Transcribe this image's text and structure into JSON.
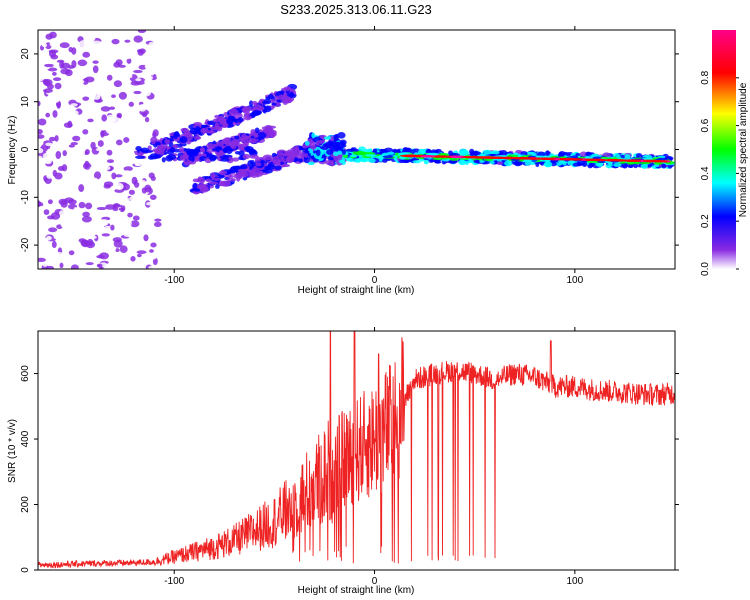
{
  "title": "S233.2025.313.06.11.G23",
  "chart_data": [
    {
      "type": "heatmap",
      "xlabel": "Height of straight line (km)",
      "ylabel": "Frequency (Hz)",
      "xlim": [
        -168,
        150
      ],
      "ylim": [
        -25,
        25
      ],
      "xticks": [
        -100,
        0,
        100
      ],
      "yticks": [
        -20,
        -10,
        0,
        10,
        20
      ],
      "colorbar": {
        "label": "Normalized spectral amplitude",
        "range": [
          0,
          1
        ],
        "ticks": [
          0.0,
          0.2,
          0.4,
          0.6,
          0.8
        ],
        "colors": [
          "#ffffff",
          "#8a2be2",
          "#0000ff",
          "#00ffff",
          "#00ff00",
          "#ffff00",
          "#ff0000",
          "#ff00aa"
        ]
      },
      "features": [
        {
          "name": "main trace",
          "x_range": [
            -20,
            148
          ],
          "freq_start": -1,
          "freq_end": -2.5
        },
        {
          "name": "upper branch",
          "x_range": [
            -110,
            -40
          ],
          "freq_start": 0,
          "freq_end": 12
        },
        {
          "name": "lower branch",
          "x_range": [
            -90,
            -30
          ],
          "freq_start": -8,
          "freq_end": 0
        }
      ]
    },
    {
      "type": "line",
      "xlabel": "Height of straight line (km)",
      "ylabel": "SNR (10 * v/v)",
      "xlim": [
        -168,
        150
      ],
      "ylim": [
        0,
        730
      ],
      "xticks": [
        -100,
        0,
        100
      ],
      "yticks": [
        0,
        200,
        400,
        600
      ],
      "series": [
        {
          "name": "SNR",
          "color": "#ee2222",
          "x": [
            -168,
            -140,
            -120,
            -110,
            -100,
            -90,
            -80,
            -70,
            -60,
            -50,
            -40,
            -30,
            -20,
            -10,
            0,
            10,
            15,
            20,
            25,
            30,
            40,
            50,
            60,
            70,
            80,
            90,
            100,
            110,
            120,
            130,
            140,
            150
          ],
          "values": [
            15,
            20,
            22,
            25,
            40,
            55,
            70,
            90,
            120,
            150,
            200,
            260,
            320,
            360,
            400,
            450,
            520,
            580,
            590,
            600,
            610,
            600,
            580,
            600,
            590,
            560,
            560,
            550,
            545,
            540,
            535,
            540
          ]
        }
      ],
      "dips": {
        "x_range": [
          18,
          62
        ],
        "min": 25
      },
      "spikes": [
        {
          "x": -22,
          "value": 730
        },
        {
          "x": -10,
          "value": 730
        },
        {
          "x": 2,
          "value": 660
        },
        {
          "x": 88,
          "value": 700
        }
      ]
    }
  ]
}
